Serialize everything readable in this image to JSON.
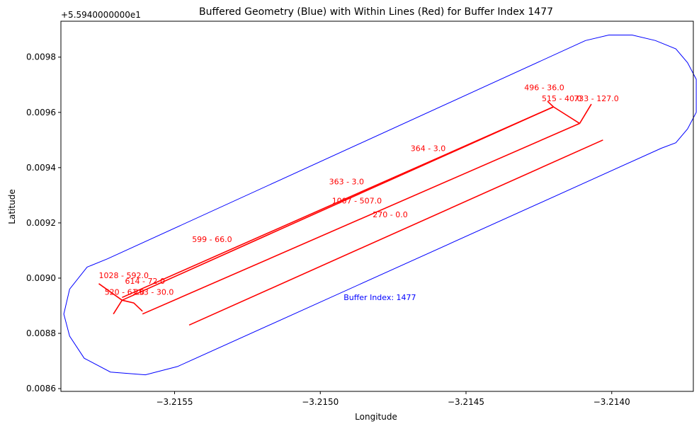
{
  "chart_data": {
    "type": "line",
    "title": "Buffered Geometry (Blue) with Within Lines (Red) for Buffer Index 1477",
    "xlabel": "Longitude",
    "ylabel": "Latitude",
    "offset_label": "+5.5940000000e1",
    "xlim": [
      -3.21589,
      -3.21372
    ],
    "ylim": [
      0.00859,
      0.00993
    ],
    "x_ticks": [
      -3.2155,
      -3.215,
      -3.2145,
      -3.214
    ],
    "x_tick_labels": [
      "−3.2155",
      "−3.2150",
      "−3.2145",
      "−3.2140"
    ],
    "y_ticks": [
      0.0086,
      0.0088,
      0.009,
      0.0092,
      0.0094,
      0.0096,
      0.0098
    ],
    "y_tick_labels": [
      "0.0086",
      "0.0088",
      "0.0090",
      "0.0092",
      "0.0094",
      "0.0096",
      "0.0098"
    ],
    "grid": false,
    "colors": {
      "buffer": "#0000ff",
      "lines": "#ff0000"
    },
    "buffer": {
      "label": "Buffer Index: 1477",
      "label_at": [
        -3.21492,
        0.00892
      ],
      "polygon": [
        [
          -3.21409,
          0.00986
        ],
        [
          -3.21401,
          0.00988
        ],
        [
          -3.21393,
          0.00988
        ],
        [
          -3.21385,
          0.00986
        ],
        [
          -3.21378,
          0.00983
        ],
        [
          -3.21374,
          0.00978
        ],
        [
          -3.21371,
          0.00972
        ],
        [
          -3.21371,
          0.00966
        ],
        [
          -3.21371,
          0.0096
        ],
        [
          -3.21374,
          0.00954
        ],
        [
          -3.21378,
          0.00949
        ],
        [
          -3.21383,
          0.00947
        ],
        [
          -3.21549,
          0.00868
        ],
        [
          -3.2156,
          0.00865
        ],
        [
          -3.21572,
          0.00866
        ],
        [
          -3.21581,
          0.00871
        ],
        [
          -3.21586,
          0.00879
        ],
        [
          -3.21588,
          0.00887
        ],
        [
          -3.21586,
          0.00896
        ],
        [
          -3.2158,
          0.00904
        ],
        [
          -3.21573,
          0.00907
        ],
        [
          -3.21409,
          0.00986
        ]
      ]
    },
    "series": [
      {
        "points": [
          [
            -3.21568,
            0.00892
          ],
          [
            -3.2142,
            0.00962
          ]
        ]
      },
      {
        "points": [
          [
            -3.21568,
            0.00893
          ],
          [
            -3.2142,
            0.00962
          ]
        ]
      },
      {
        "points": [
          [
            -3.21576,
            0.00898
          ],
          [
            -3.21568,
            0.00892
          ]
        ]
      },
      {
        "points": [
          [
            -3.21571,
            0.00887
          ],
          [
            -3.21568,
            0.00892
          ]
        ]
      },
      {
        "points": [
          [
            -3.21568,
            0.00892
          ],
          [
            -3.21564,
            0.00891
          ],
          [
            -3.21561,
            0.00888
          ]
        ]
      },
      {
        "points": [
          [
            -3.2142,
            0.00962
          ],
          [
            -3.21422,
            0.00964
          ]
        ]
      },
      {
        "points": [
          [
            -3.2142,
            0.00962
          ],
          [
            -3.21411,
            0.00956
          ]
        ]
      },
      {
        "points": [
          [
            -3.21561,
            0.00887
          ],
          [
            -3.21411,
            0.00956
          ]
        ]
      },
      {
        "points": [
          [
            -3.21411,
            0.00956
          ],
          [
            -3.21407,
            0.00963
          ]
        ]
      },
      {
        "points": [
          [
            -3.21545,
            0.00883
          ],
          [
            -3.21403,
            0.0095
          ]
        ]
      }
    ],
    "annotations": [
      {
        "text": "496 - 36.0",
        "at": [
          -3.2143,
          0.00968
        ]
      },
      {
        "text": "515 - 40.0",
        "at": [
          -3.21424,
          0.00964
        ]
      },
      {
        "text": "733 - 127.0",
        "at": [
          -3.21413,
          0.00964
        ]
      },
      {
        "text": "364 - 3.0",
        "at": [
          -3.21469,
          0.00946
        ]
      },
      {
        "text": "363 - 3.0",
        "at": [
          -3.21497,
          0.00934
        ]
      },
      {
        "text": "1007 - 507.0",
        "at": [
          -3.21496,
          0.00927
        ]
      },
      {
        "text": "270 - 0.0",
        "at": [
          -3.21482,
          0.00922
        ]
      },
      {
        "text": "599 - 66.0",
        "at": [
          -3.21544,
          0.00913
        ]
      },
      {
        "text": "1028 - 592.0",
        "at": [
          -3.21576,
          0.009
        ]
      },
      {
        "text": "614 - 72.0",
        "at": [
          -3.21567,
          0.00898
        ]
      },
      {
        "text": "520 - 61.0",
        "at": [
          -3.21574,
          0.00894
        ]
      },
      {
        "text": "253 - 30.0",
        "at": [
          -3.21564,
          0.00894
        ]
      }
    ]
  }
}
